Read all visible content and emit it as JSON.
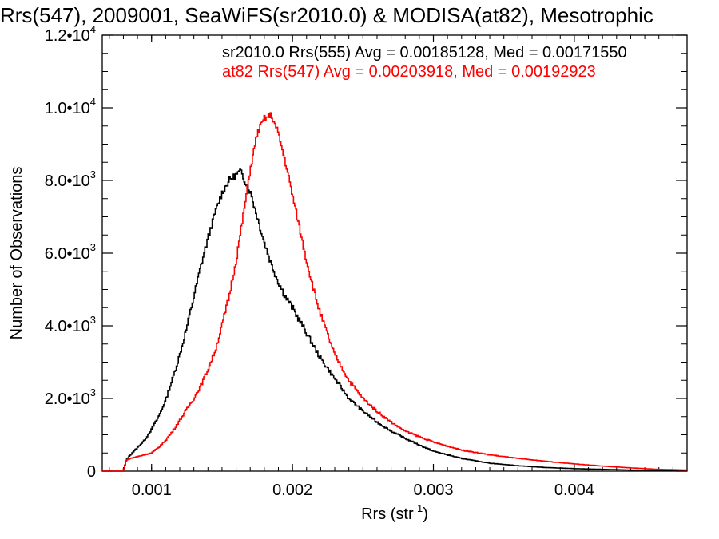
{
  "chart_data": {
    "type": "line",
    "title": "Rrs(547), 2009001, SeaWiFS(sr2010.0) & MODISA(at82), Mesotrophic",
    "xlabel": "Rrs (str",
    "xlabel_sup": "-1",
    "xlabel_close": ")",
    "ylabel": "Number of Observations",
    "xlim": [
      0.00065,
      0.0048
    ],
    "ylim": [
      0,
      12000
    ],
    "grid": false,
    "legend_position": "top-right",
    "x_ticks": [
      {
        "value": 0.001,
        "label": "0.001"
      },
      {
        "value": 0.002,
        "label": "0.002"
      },
      {
        "value": 0.003,
        "label": "0.003"
      },
      {
        "value": 0.004,
        "label": "0.004"
      }
    ],
    "y_ticks": [
      {
        "value": 0,
        "mant": "0",
        "exp": ""
      },
      {
        "value": 2000,
        "mant": "2.0•10",
        "exp": "3"
      },
      {
        "value": 4000,
        "mant": "4.0•10",
        "exp": "3"
      },
      {
        "value": 6000,
        "mant": "6.0•10",
        "exp": "3"
      },
      {
        "value": 8000,
        "mant": "8.0•10",
        "exp": "3"
      },
      {
        "value": 10000,
        "mant": "1.0•10",
        "exp": "4"
      },
      {
        "value": 12000,
        "mant": "1.2•10",
        "exp": "4"
      }
    ],
    "series": [
      {
        "legend": "sr2010.0 Rrs(555) Avg = 0.00185128, Med = 0.00171550",
        "color": "#000000",
        "style": "step",
        "x": [
          0.00065,
          0.0008,
          0.00082,
          0.00085,
          0.0009,
          0.00095,
          0.001,
          0.00105,
          0.0011,
          0.00115,
          0.0012,
          0.00125,
          0.0013,
          0.00135,
          0.0014,
          0.00145,
          0.0015,
          0.00155,
          0.0016,
          0.00163,
          0.00165,
          0.0017,
          0.00175,
          0.0018,
          0.00185,
          0.0019,
          0.00195,
          0.002,
          0.0021,
          0.0022,
          0.0023,
          0.0024,
          0.0025,
          0.0026,
          0.0027,
          0.0028,
          0.0029,
          0.003,
          0.0032,
          0.0034,
          0.0036,
          0.0038,
          0.004,
          0.0042,
          0.0044,
          0.0046,
          0.0048
        ],
        "y": [
          0,
          0,
          300,
          450,
          650,
          850,
          1150,
          1500,
          1950,
          2550,
          3200,
          3950,
          4800,
          5650,
          6400,
          7100,
          7650,
          8000,
          8150,
          8250,
          8100,
          7700,
          7000,
          6300,
          5700,
          5200,
          4800,
          4500,
          3800,
          3100,
          2550,
          2000,
          1650,
          1350,
          1100,
          900,
          720,
          550,
          350,
          220,
          150,
          100,
          70,
          50,
          30,
          20,
          15
        ]
      },
      {
        "legend": "at82 Rrs(547) Avg = 0.00203918, Med = 0.00192923",
        "color": "#ff0000",
        "style": "step",
        "x": [
          0.00065,
          0.0008,
          0.00082,
          0.00085,
          0.0009,
          0.00095,
          0.001,
          0.00105,
          0.0011,
          0.00115,
          0.0012,
          0.00125,
          0.0013,
          0.00135,
          0.0014,
          0.00145,
          0.0015,
          0.00155,
          0.0016,
          0.00165,
          0.0017,
          0.00175,
          0.0018,
          0.00185,
          0.00188,
          0.0019,
          0.00195,
          0.002,
          0.00205,
          0.0021,
          0.00215,
          0.0022,
          0.0023,
          0.0024,
          0.0025,
          0.0026,
          0.0027,
          0.0028,
          0.003,
          0.0032,
          0.0034,
          0.0036,
          0.0038,
          0.004,
          0.0042,
          0.0044,
          0.0046,
          0.0048
        ],
        "y": [
          0,
          0,
          300,
          350,
          400,
          450,
          500,
          650,
          850,
          1100,
          1400,
          1700,
          2000,
          2350,
          2800,
          3300,
          4000,
          4800,
          5800,
          7000,
          8300,
          9300,
          9700,
          9800,
          9500,
          9300,
          8500,
          7600,
          6700,
          5800,
          5000,
          4300,
          3200,
          2500,
          2000,
          1650,
          1350,
          1100,
          800,
          580,
          450,
          350,
          270,
          200,
          140,
          90,
          50,
          30
        ]
      }
    ]
  }
}
